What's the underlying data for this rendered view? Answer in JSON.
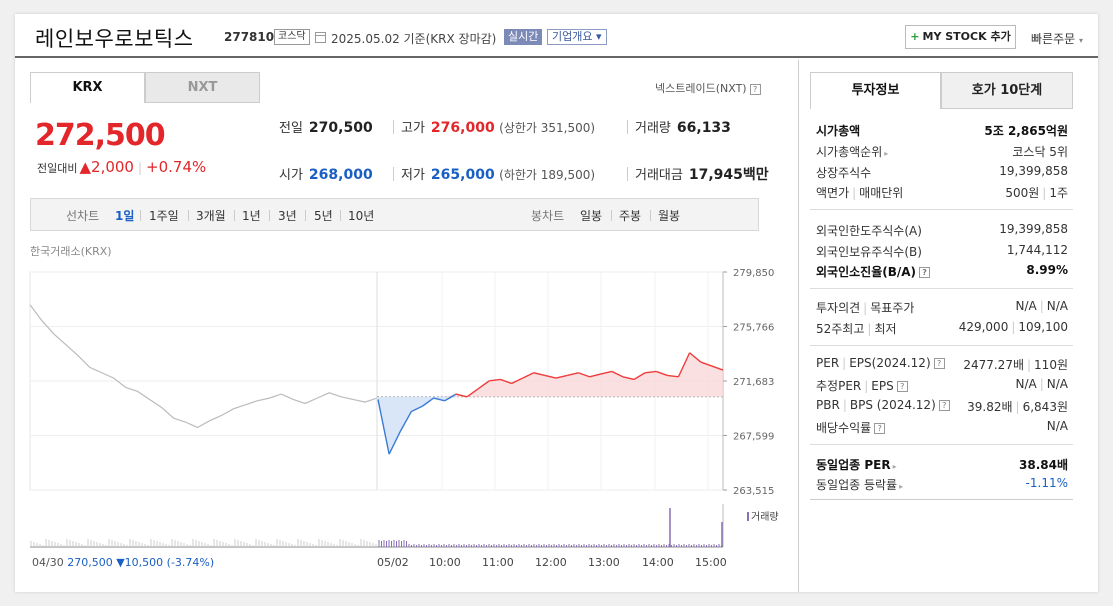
{
  "header": {
    "company_name": "레인보우로보틱스",
    "code": "277810",
    "market": "코스닥",
    "date_basis": "2025.05.02  기준(KRX 장마감)",
    "realtime_badge": "실시간",
    "overview_button": "기업개요",
    "my_stock_button": "MY STOCK 추가",
    "quick_order": "빠른주문"
  },
  "tabs": [
    "KRX",
    "NXT"
  ],
  "nextrade_link": "넥스트레이드(NXT)",
  "quote": {
    "price": "272,500",
    "change_label": "전일대비",
    "change_value": "▲2,000",
    "change_pct": "+0.74%",
    "prev_close_label": "전일",
    "prev_close": "270,500",
    "high_label": "고가",
    "high": "276,000",
    "upper_limit": "(상한가 351,500)",
    "volume_label": "거래량",
    "volume": "66,133",
    "open_label": "시가",
    "open": "268,000",
    "low_label": "저가",
    "low": "265,000",
    "lower_limit": "(하한가 189,500)",
    "amount_label": "거래대금",
    "amount": "17,945",
    "amount_unit": "백만"
  },
  "period_bar": {
    "line_label": "선차트",
    "line_periods": [
      "1일",
      "1주일",
      "3개월",
      "1년",
      "3년",
      "5년",
      "10년"
    ],
    "selected": "1일",
    "candle_label": "봉차트",
    "candle_periods": [
      "일봉",
      "주봉",
      "월봉"
    ]
  },
  "chart_data": {
    "type": "line",
    "source_label": "한국거래소(KRX)",
    "y_ticks": [
      "279,850",
      "275,766",
      "271,683",
      "267,599",
      "263,515"
    ],
    "ylim": [
      263515,
      279850
    ],
    "x_labels": [
      "05/02",
      "10:00",
      "11:00",
      "12:00",
      "13:00",
      "14:00",
      "15:00"
    ],
    "reference_price": 270500,
    "previous_day": {
      "date": "04/30",
      "price": "270,500",
      "change": "▼10,500",
      "change_pct": "(-3.74%)",
      "points": [
        277400,
        276200,
        275200,
        274400,
        273600,
        272700,
        272300,
        271900,
        271200,
        270900,
        270300,
        269700,
        268900,
        268600,
        268200,
        268700,
        269100,
        269600,
        269900,
        270200,
        270400,
        270700,
        270300,
        270000,
        270400,
        270800,
        270500,
        270300,
        270100,
        270400
      ]
    },
    "today": {
      "points": [
        270300,
        266200,
        267900,
        269400,
        269800,
        270400,
        270200,
        270700,
        270500,
        271100,
        271700,
        271800,
        271500,
        271900,
        272300,
        272100,
        271900,
        272100,
        272300,
        272000,
        272200,
        272400,
        272000,
        271800,
        272300,
        272400,
        272100,
        272000,
        273800,
        273100,
        272800,
        272500
      ]
    },
    "volume_legend": "거래량"
  },
  "invest_tabs": [
    "투자정보",
    "호가 10단계"
  ],
  "invest_info": {
    "market_cap_label": "시가총액",
    "market_cap": "5조 2,865억원",
    "cap_rank_label": "시가총액순위",
    "cap_rank": "코스닥 5위",
    "listed_shares_label": "상장주식수",
    "listed_shares": "19,399,858",
    "par_label": "액면가",
    "trade_unit_label": "매매단위",
    "par_value": "500원",
    "trade_unit": "1주",
    "foreign_limit_label": "외국인한도주식수(A)",
    "foreign_limit": "19,399,858",
    "foreign_hold_label": "외국인보유주식수(B)",
    "foreign_hold": "1,744,112",
    "foreign_ratio_label": "외국인소진율(B/A)",
    "foreign_ratio": "8.99%",
    "opinion_label": "투자의견",
    "target_label": "목표주가",
    "opinion": "N/A",
    "target": "N/A",
    "w52_high_label": "52주최고",
    "w52_low_label": "최저",
    "w52_high": "429,000",
    "w52_low": "109,100",
    "per_label": "PER",
    "eps_label": "EPS(2024.12)",
    "per": "2477.27배",
    "eps": "110원",
    "est_per_label": "추정PER",
    "est_eps_label": "EPS",
    "est_per": "N/A",
    "est_eps": "N/A",
    "pbr_label": "PBR",
    "bps_label": "BPS (2024.12)",
    "pbr": "39.82배",
    "bps": "6,843원",
    "dividend_label": "배당수익률",
    "dividend": "N/A",
    "sector_per_label": "동일업종 PER",
    "sector_per": "38.84배",
    "sector_change_label": "동일업종 등락률",
    "sector_change": "-1.11%"
  }
}
